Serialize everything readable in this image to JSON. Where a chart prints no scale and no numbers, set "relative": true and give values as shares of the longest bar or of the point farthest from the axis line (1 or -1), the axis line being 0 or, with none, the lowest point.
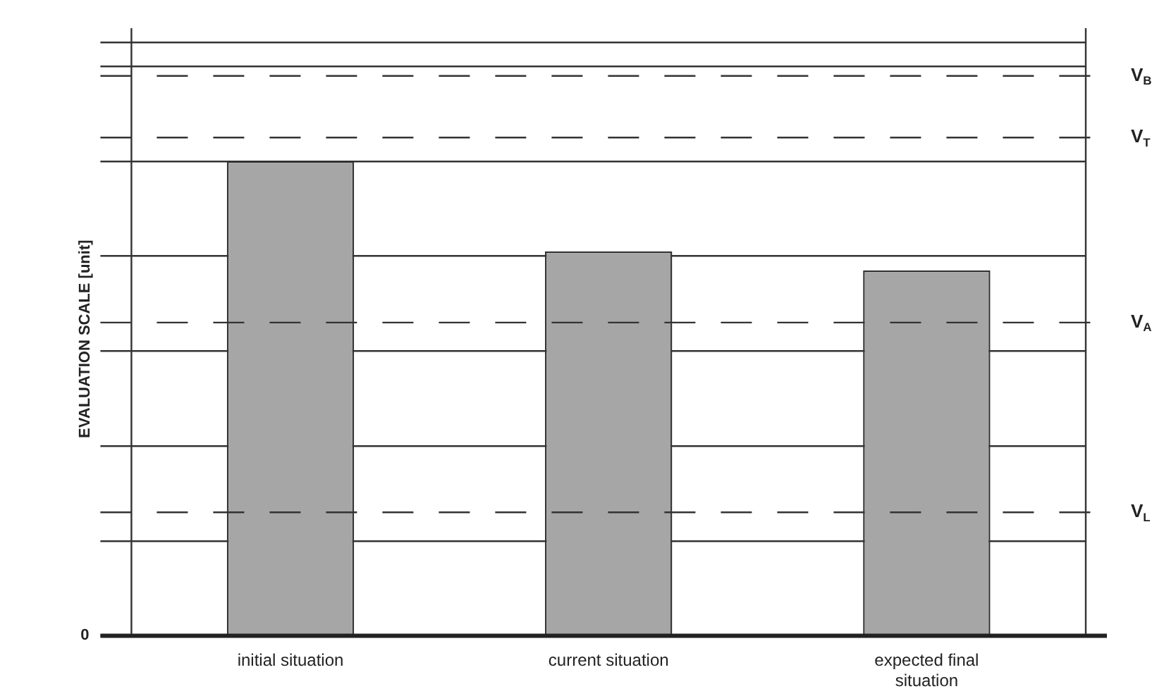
{
  "chart_data": {
    "type": "bar",
    "relative": true,
    "ylabel": "EVALUATION SCALE [unit]",
    "categories": [
      "initial situation",
      "current situation",
      "expected final situation"
    ],
    "values": [
      1,
      0.81,
      0.77
    ],
    "color": "#a6a6a6",
    "grid": "y",
    "ref_lines": [
      {
        "axis": "y",
        "value": 1.18,
        "label": "V$_{B}$",
        "line_style": "dashed",
        "color": "#333333"
      },
      {
        "axis": "y",
        "value": 1.05,
        "label": "V$_{T}$",
        "line_style": "dashed",
        "color": "#333333"
      },
      {
        "axis": "y",
        "value": 0.66,
        "label": "V$_{A}$",
        "line_style": "dashed",
        "color": "#333333"
      },
      {
        "axis": "y",
        "value": 0.26,
        "label": "V$_{L}$",
        "line_style": "dashed",
        "color": "#333333"
      }
    ],
    "annotations": [
      "0"
    ]
  }
}
